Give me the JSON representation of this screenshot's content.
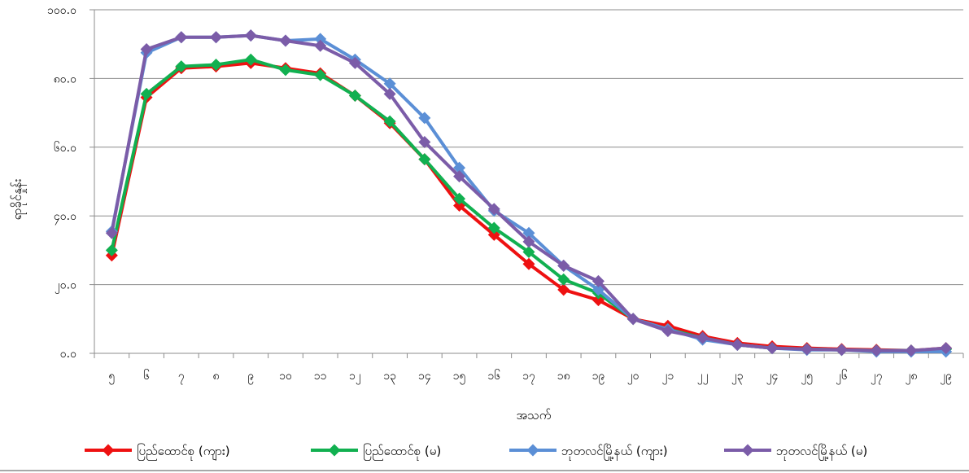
{
  "chart_data": {
    "type": "line",
    "title": "",
    "xlabel": "အသက်",
    "ylabel": "ရာခိုင်နှုန်း",
    "ylim": [
      0,
      100
    ],
    "yticks": [
      0,
      20,
      40,
      60,
      80,
      100
    ],
    "ytick_labels": [
      "၀.၀",
      "၂၀.၀",
      "၄၀.၀",
      "၆၀.၀",
      "၈၀.၀",
      "၁၀၀.၀"
    ],
    "categories": [
      "၅",
      "၆",
      "၇",
      "၈",
      "၉",
      "၁၀",
      "၁၁",
      "၁၂",
      "၁၃",
      "၁၄",
      "၁၅",
      "၁၆",
      "၁၇",
      "၁၈",
      "၁၉",
      "၂၀",
      "၂၁",
      "၂၂",
      "၂၃",
      "၂၄",
      "၂၅",
      "၂၆",
      "၂၇",
      "၂၈",
      "၂၉"
    ],
    "grid": true,
    "legend": "bottom",
    "series": [
      {
        "name": "ပြည်ထောင်စု (ကျား)",
        "color": "#ee1111",
        "values": [
          28.5,
          74.5,
          83.0,
          83.5,
          84.5,
          83.0,
          81.5,
          75.0,
          67.0,
          56.5,
          43.0,
          34.5,
          26.0,
          18.5,
          15.5,
          10.0,
          8.0,
          5.0,
          3.0,
          2.0,
          1.5,
          1.2,
          1.0,
          0.8,
          1.5
        ]
      },
      {
        "name": "ပြည်ထောင်စု (မ)",
        "color": "#11b050",
        "values": [
          30.0,
          75.5,
          83.5,
          84.0,
          85.5,
          82.5,
          81.0,
          75.0,
          67.5,
          56.5,
          45.0,
          36.5,
          29.5,
          21.5,
          17.5,
          10.0,
          7.0,
          4.5,
          2.5,
          1.5,
          1.2,
          1.0,
          0.8,
          0.8,
          1.2
        ]
      },
      {
        "name": "ဘုတလင်မြို့နယ် (ကျား)",
        "color": "#5b8fd6",
        "values": [
          35.5,
          87.5,
          92.0,
          92.0,
          92.5,
          91.0,
          91.5,
          85.5,
          78.5,
          68.5,
          54.0,
          41.5,
          35.0,
          25.5,
          18.5,
          10.0,
          7.0,
          4.0,
          2.5,
          1.5,
          1.0,
          1.0,
          0.5,
          0.5,
          0.5
        ]
      },
      {
        "name": "ဘုတလင်မြို့နယ် (မ)",
        "color": "#7b5ca8",
        "values": [
          35.0,
          88.5,
          92.0,
          92.0,
          92.5,
          91.0,
          89.5,
          84.5,
          75.5,
          61.5,
          51.5,
          42.0,
          32.5,
          25.5,
          21.0,
          10.0,
          6.5,
          4.5,
          2.5,
          1.5,
          1.2,
          1.0,
          0.8,
          0.8,
          1.5
        ]
      }
    ]
  }
}
